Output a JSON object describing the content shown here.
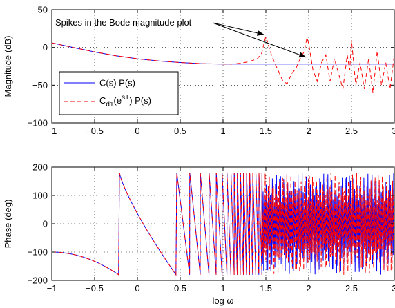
{
  "chart_data": [
    {
      "type": "line",
      "xlabel": "",
      "ylabel": "Magnitude (dB)",
      "xlim": [
        -1,
        3
      ],
      "ylim": [
        -100,
        50
      ],
      "xticks": [
        "−1",
        "−0.5",
        "0",
        "0.5",
        "1",
        "1.5",
        "2",
        "2.5",
        "3"
      ],
      "yticks": [
        "50",
        "0",
        "−50",
        "−100"
      ],
      "grid": true,
      "legend_position": "lower-left",
      "annotation": "Spikes in the Bode magnitude plot",
      "series": [
        {
          "name": "C(s) P(s)",
          "color": "#0000ff",
          "style": "solid",
          "x": [
            -1,
            -0.75,
            -0.5,
            -0.25,
            0,
            0.25,
            0.5,
            0.75,
            1,
            1.25,
            1.5,
            1.75,
            2,
            2.25,
            2.5,
            2.75,
            3
          ],
          "y": [
            6,
            0,
            -6,
            -11,
            -15,
            -18,
            -20,
            -21.5,
            -22,
            -22,
            -22,
            -22,
            -22,
            -22,
            -22,
            -22,
            -22
          ]
        },
        {
          "name_main": "C",
          "name_sub": "d1",
          "name_paren_open": "(e",
          "name_sup": "sT",
          "name_rest": ") P(s)",
          "color": "#ff0000",
          "style": "dashed",
          "x": [
            -1,
            -0.75,
            -0.5,
            -0.25,
            0,
            0.25,
            0.5,
            0.75,
            1,
            1.1,
            1.2,
            1.3,
            1.4,
            1.45,
            1.5,
            1.55,
            1.6,
            1.65,
            1.7,
            1.75,
            1.8,
            1.85,
            1.9,
            1.95,
            1.98,
            2.0,
            2.05,
            2.1,
            2.15,
            2.2,
            2.25,
            2.3,
            2.35,
            2.4,
            2.45,
            2.48,
            2.5,
            2.55,
            2.6,
            2.65,
            2.7,
            2.75,
            2.8,
            2.85,
            2.9,
            2.95,
            3.0
          ],
          "y": [
            6,
            0,
            -6,
            -11,
            -15,
            -18,
            -20,
            -21.5,
            -22,
            -22,
            -21,
            -19,
            -15,
            -8,
            15,
            -5,
            -20,
            -32,
            -45,
            -48,
            -35,
            -28,
            -15,
            -5,
            13,
            5,
            -30,
            -45,
            -20,
            -10,
            -45,
            -15,
            -35,
            -55,
            -10,
            -30,
            9,
            -50,
            -20,
            -55,
            -15,
            -60,
            -5,
            -50,
            -20,
            -55,
            -10
          ]
        }
      ]
    },
    {
      "type": "line",
      "xlabel": "log ω",
      "ylabel": "Phase (deg)",
      "xlim": [
        -1,
        3
      ],
      "ylim": [
        -200,
        200
      ],
      "xticks": [
        "−1",
        "−0.5",
        "0",
        "0.5",
        "1",
        "1.5",
        "2",
        "2.5",
        "3"
      ],
      "yticks": [
        "200",
        "100",
        "0",
        "−100",
        "−200"
      ],
      "grid": true,
      "series": [
        {
          "name": "C(s) P(s)",
          "color": "#0000ff",
          "style": "solid",
          "description_points": [
            [
              -1,
              -100
            ],
            [
              -0.5,
              -130
            ],
            [
              -0.22,
              -180
            ],
            [
              -0.21,
              180
            ],
            [
              0.45,
              -180
            ],
            [
              0.46,
              180
            ],
            [
              0.6,
              -180
            ],
            [
              0.61,
              180
            ],
            [
              0.7,
              -180
            ],
            [
              0.71,
              180
            ],
            [
              0.8,
              -180
            ],
            [
              0.81,
              180
            ],
            [
              0.88,
              -180
            ],
            [
              0.89,
              180
            ],
            [
              0.96,
              -180
            ],
            [
              0.97,
              180
            ],
            [
              1.02,
              -180
            ],
            [
              1.03,
              180
            ],
            [
              1.08,
              -180
            ],
            [
              1.09,
              180
            ],
            [
              1.14,
              -180
            ],
            [
              1.15,
              180
            ],
            [
              1.2,
              -180
            ],
            [
              1.21,
              180
            ],
            [
              1.26,
              -180
            ],
            [
              1.27,
              180
            ],
            [
              1.32,
              -180
            ],
            [
              1.33,
              180
            ],
            [
              1.38,
              -180
            ],
            [
              1.39,
              180
            ],
            [
              1.44,
              -180
            ],
            [
              1.45,
              180
            ],
            [
              3.0,
              0
            ]
          ]
        },
        {
          "name": "C_d1(e^sT) P(s)",
          "color": "#ff0000",
          "style": "dashed"
        }
      ]
    }
  ]
}
